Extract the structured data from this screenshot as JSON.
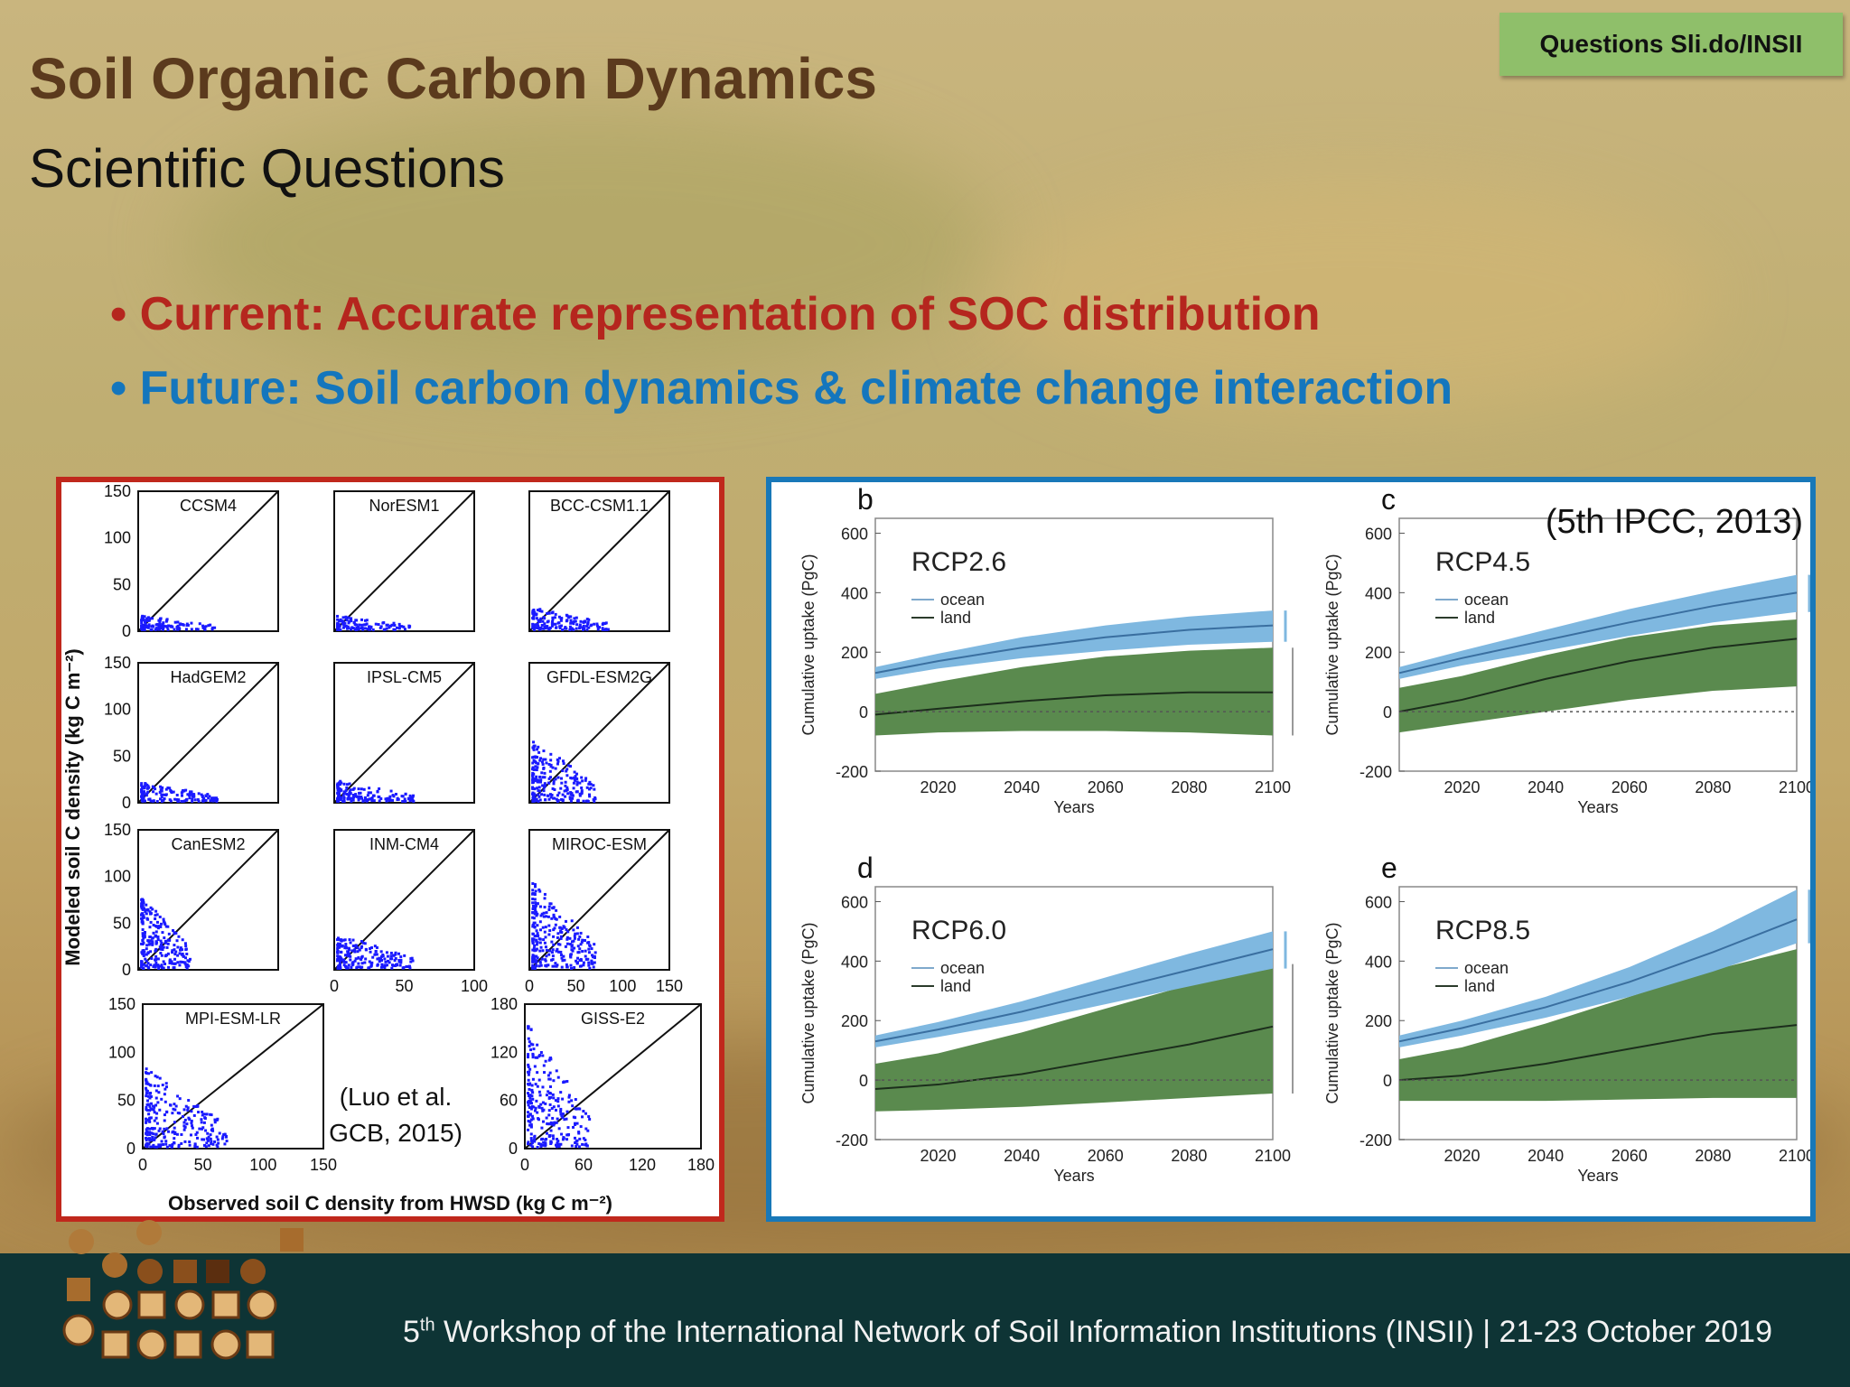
{
  "header": {
    "badge": "Questions Sli.do/INSII",
    "title": "Soil Organic Carbon Dynamics",
    "subtitle": "Scientific Questions"
  },
  "bullets": [
    {
      "text": "Current: Accurate representation of SOC distribution",
      "color": "#b5261e"
    },
    {
      "text": "Future: Soil carbon dynamics & climate change interaction",
      "color": "#1476bd"
    }
  ],
  "footer": {
    "ordinal": "5",
    "ordinal_suffix": "th",
    "text": " Workshop of the International Network of Soil Information Institutions (INSII)  |  21-23 October 2019"
  },
  "colors": {
    "red_frame": "#c0281c",
    "blue_frame": "#1878b8",
    "scatter_points": "#1a1aff",
    "ocean_band": "#7fb8e0",
    "land_band": "#5a8a4e"
  },
  "chart_data": [
    {
      "type": "scatter",
      "citation": "(Luo et al. GCB, 2015)",
      "ylabel": "Modeled soil C density (kg C m⁻²)",
      "xlabel": "Observed soil C density from HWSD (kg C m⁻²)",
      "panels": [
        {
          "name": "CCSM4",
          "xlim": [
            0,
            150
          ],
          "ylim": [
            0,
            150
          ],
          "yticks": [
            "0",
            "50",
            "100",
            "150"
          ],
          "xticks": []
        },
        {
          "name": "NorESM1",
          "xlim": [
            0,
            150
          ],
          "ylim": [
            0,
            150
          ],
          "yticks": [],
          "xticks": []
        },
        {
          "name": "BCC-CSM1.1",
          "xlim": [
            0,
            150
          ],
          "ylim": [
            0,
            150
          ],
          "yticks": [],
          "xticks": []
        },
        {
          "name": "HadGEM2",
          "xlim": [
            0,
            150
          ],
          "ylim": [
            0,
            150
          ],
          "yticks": [
            "0",
            "50",
            "100",
            "150"
          ],
          "xticks": []
        },
        {
          "name": "IPSL-CM5",
          "xlim": [
            0,
            150
          ],
          "ylim": [
            0,
            150
          ],
          "yticks": [],
          "xticks": []
        },
        {
          "name": "GFDL-ESM2G",
          "xlim": [
            0,
            150
          ],
          "ylim": [
            0,
            150
          ],
          "yticks": [],
          "xticks": []
        },
        {
          "name": "CanESM2",
          "xlim": [
            0,
            150
          ],
          "ylim": [
            0,
            150
          ],
          "yticks": [
            "0",
            "50",
            "100",
            "150"
          ],
          "xticks": []
        },
        {
          "name": "INM-CM4",
          "xlim": [
            0,
            150
          ],
          "ylim": [
            0,
            150
          ],
          "yticks": [],
          "xticks": [
            "0",
            "50",
            "100"
          ]
        },
        {
          "name": "MIROC-ESM",
          "xlim": [
            0,
            150
          ],
          "ylim": [
            0,
            150
          ],
          "yticks": [],
          "xticks": [
            "0",
            "50",
            "100",
            "150"
          ]
        },
        {
          "name": "MPI-ESM-LR",
          "xlim": [
            0,
            150
          ],
          "ylim": [
            0,
            150
          ],
          "yticks": [
            "0",
            "50",
            "100",
            "150"
          ],
          "xticks": [
            "0",
            "50",
            "100",
            "150"
          ]
        },
        {
          "name": "GISS-E2",
          "xlim": [
            0,
            180
          ],
          "ylim": [
            0,
            180
          ],
          "yticks": [
            "0",
            "60",
            "120",
            "180"
          ],
          "xticks": [
            "0",
            "60",
            "120",
            "180"
          ]
        }
      ]
    },
    {
      "type": "area",
      "citation": "(5th IPCC, 2013)",
      "ylabel": "Cumulative uptake (PgC)",
      "xlabel": "Years",
      "xlim": [
        2005,
        2100
      ],
      "ylim": [
        -200,
        650
      ],
      "xticks": [
        2020,
        2040,
        2060,
        2080,
        2100
      ],
      "yticks": [
        -200,
        0,
        200,
        400,
        600
      ],
      "legend": [
        "ocean",
        "land"
      ],
      "panels": [
        {
          "letter": "b",
          "scenario": "RCP2.6",
          "x": [
            2005,
            2020,
            2040,
            2060,
            2080,
            2100
          ],
          "ocean": [
            130,
            170,
            215,
            250,
            275,
            290
          ],
          "ocean_low": [
            110,
            145,
            180,
            205,
            225,
            235
          ],
          "ocean_high": [
            150,
            195,
            250,
            290,
            320,
            340
          ],
          "land": [
            -10,
            10,
            35,
            55,
            65,
            65
          ],
          "land_low": [
            -80,
            -70,
            -65,
            -65,
            -70,
            -80
          ],
          "land_high": [
            60,
            100,
            150,
            185,
            205,
            215
          ]
        },
        {
          "letter": "c",
          "scenario": "RCP4.5",
          "x": [
            2005,
            2020,
            2040,
            2060,
            2080,
            2100
          ],
          "ocean": [
            130,
            180,
            240,
            300,
            355,
            400
          ],
          "ocean_low": [
            110,
            155,
            205,
            255,
            300,
            335
          ],
          "ocean_high": [
            150,
            205,
            275,
            345,
            405,
            460
          ],
          "land": [
            0,
            40,
            110,
            170,
            215,
            245
          ],
          "land_low": [
            -70,
            -40,
            0,
            40,
            70,
            85
          ],
          "land_high": [
            80,
            120,
            190,
            250,
            290,
            310
          ]
        },
        {
          "letter": "d",
          "scenario": "RCP6.0",
          "x": [
            2005,
            2020,
            2040,
            2060,
            2080,
            2100
          ],
          "ocean": [
            130,
            170,
            230,
            300,
            370,
            440
          ],
          "ocean_low": [
            110,
            145,
            195,
            255,
            315,
            375
          ],
          "ocean_high": [
            150,
            195,
            265,
            345,
            425,
            500
          ],
          "land": [
            -30,
            -15,
            20,
            70,
            120,
            180
          ],
          "land_low": [
            -105,
            -100,
            -90,
            -75,
            -60,
            -45
          ],
          "land_high": [
            55,
            90,
            160,
            240,
            320,
            390
          ]
        },
        {
          "letter": "e",
          "scenario": "RCP8.5",
          "x": [
            2005,
            2020,
            2040,
            2060,
            2080,
            2100
          ],
          "ocean": [
            130,
            175,
            245,
            330,
            430,
            540
          ],
          "ocean_low": [
            110,
            150,
            210,
            280,
            365,
            460
          ],
          "ocean_high": [
            150,
            200,
            280,
            380,
            500,
            640
          ],
          "land": [
            0,
            15,
            55,
            105,
            155,
            185
          ],
          "land_low": [
            -70,
            -70,
            -70,
            -65,
            -60,
            -60
          ],
          "land_high": [
            70,
            110,
            190,
            280,
            370,
            440
          ]
        }
      ]
    }
  ]
}
